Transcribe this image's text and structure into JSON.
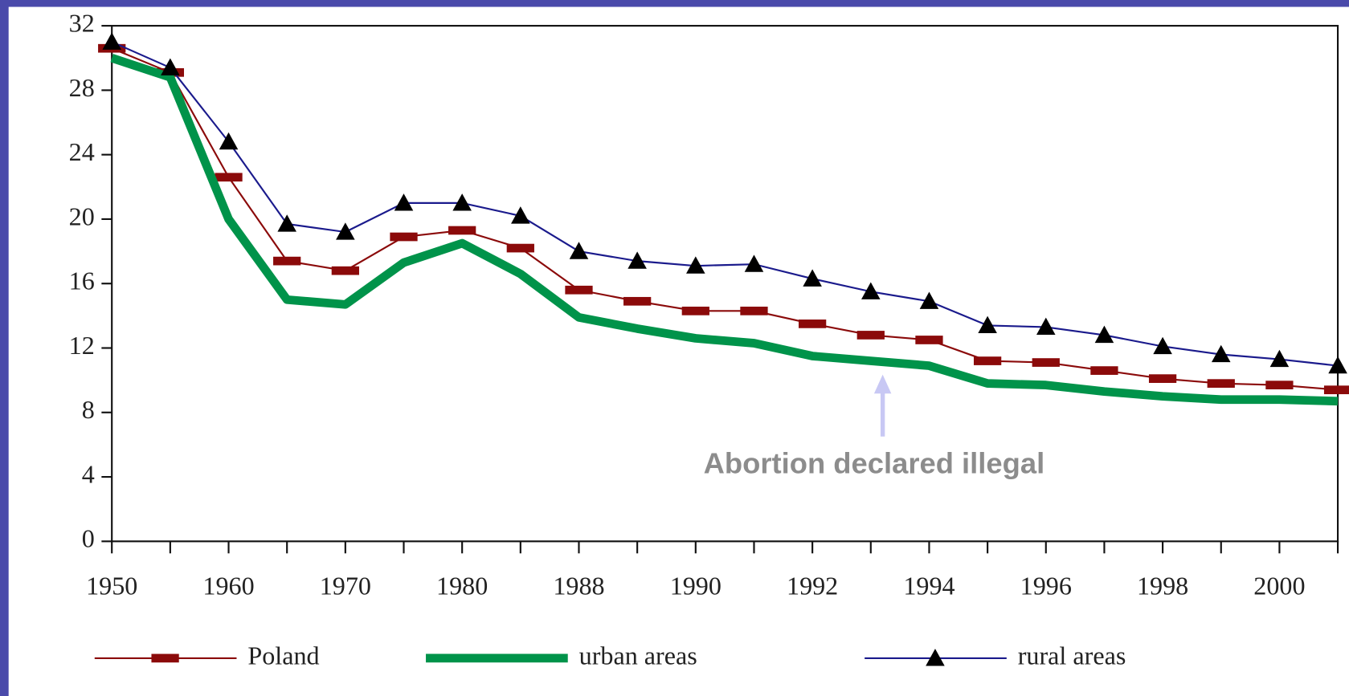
{
  "chart_data": {
    "type": "line",
    "categories": [
      "1950",
      null,
      "1960",
      null,
      "1970",
      null,
      "1980",
      null,
      "1988",
      null,
      "1990",
      null,
      "1992",
      null,
      "1994",
      null,
      "1996",
      null,
      "1998",
      null,
      "2000",
      null
    ],
    "series": [
      {
        "name": "Poland",
        "color": "#8b0a0a",
        "width": 2,
        "marker": "dash",
        "values": [
          30.6,
          29.1,
          22.6,
          17.4,
          16.8,
          18.9,
          19.3,
          18.2,
          15.6,
          14.9,
          14.3,
          14.3,
          13.5,
          12.8,
          12.5,
          11.2,
          11.1,
          10.6,
          10.1,
          9.8,
          9.7,
          9.4
        ]
      },
      {
        "name": "urban areas",
        "color": "#00934a",
        "width": 10,
        "marker": "none",
        "values": [
          30.0,
          28.8,
          20.0,
          15.0,
          14.7,
          17.3,
          18.5,
          16.6,
          13.9,
          13.2,
          12.6,
          12.3,
          11.5,
          11.2,
          10.9,
          9.8,
          9.7,
          9.3,
          9.0,
          8.8,
          8.8,
          8.7
        ]
      },
      {
        "name": "rural areas",
        "color": "#1a1a8c",
        "width": 2,
        "marker": "triangle",
        "values": [
          31.0,
          29.4,
          24.8,
          19.7,
          19.2,
          21.0,
          21.0,
          20.2,
          18.0,
          17.4,
          17.1,
          17.2,
          16.3,
          15.5,
          14.9,
          13.4,
          13.3,
          12.8,
          12.1,
          11.6,
          11.3,
          10.9
        ]
      }
    ],
    "ylim": [
      0,
      32
    ],
    "yticks": [
      0,
      4,
      8,
      12,
      16,
      20,
      24,
      28,
      32
    ],
    "annotation": "Abortion declared illegal"
  }
}
